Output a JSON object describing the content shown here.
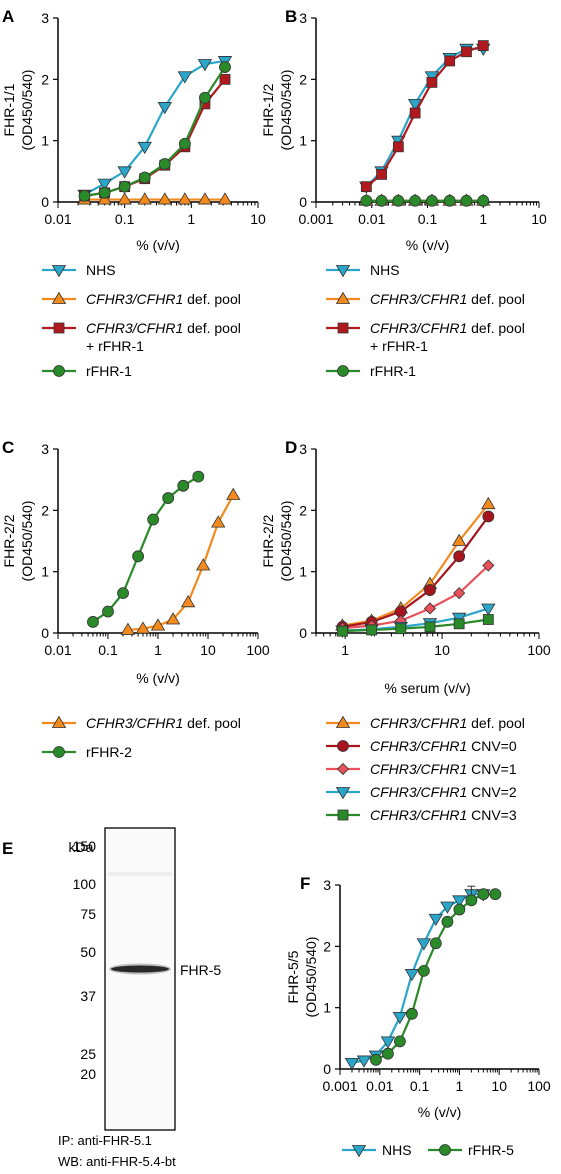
{
  "colors": {
    "nhs": "#2aa6c8",
    "def": "#f28a1e",
    "defplus": "#b01a1e",
    "rfhr": "#2a8a2a",
    "cnv0": "#a8141e",
    "cnv1": "#e8505a",
    "cnv2": "#2aa6c8",
    "cnv3": "#2a8a2a"
  },
  "chart_data": [
    {
      "id": "A",
      "type": "line",
      "letter": "A",
      "xlabel": "% (v/v)",
      "ylabel": "FHR-1/1",
      "ylabel2": "(OD450/540)",
      "xscale": "log",
      "xlim": [
        0.01,
        10
      ],
      "ylim": [
        0,
        3
      ],
      "xticks": [
        "0.01",
        "0.1",
        "1",
        "10"
      ],
      "yticks": [
        "0",
        "1",
        "2",
        "3"
      ],
      "series": [
        {
          "name": "NHS",
          "key": "nhs",
          "marker": "tri-down",
          "x": [
            0.025,
            0.05,
            0.1,
            0.2,
            0.4,
            0.8,
            1.6,
            3.2
          ],
          "y": [
            0.12,
            0.3,
            0.5,
            0.9,
            1.55,
            2.05,
            2.25,
            2.3
          ]
        },
        {
          "name": "CFHR3/CFHR1 def. pool",
          "key": "def",
          "marker": "tri-up",
          "x": [
            0.025,
            0.05,
            0.1,
            0.2,
            0.4,
            0.8,
            1.6,
            3.2
          ],
          "y": [
            0.04,
            0.04,
            0.04,
            0.04,
            0.04,
            0.04,
            0.04,
            0.04
          ]
        },
        {
          "name": "CFHR3/CFHR1 def. pool + rFHR-1",
          "key": "defplus",
          "marker": "square",
          "x": [
            0.025,
            0.05,
            0.1,
            0.2,
            0.4,
            0.8,
            1.6,
            3.2
          ],
          "y": [
            0.1,
            0.15,
            0.25,
            0.38,
            0.6,
            0.9,
            1.6,
            2.0
          ]
        },
        {
          "name": "rFHR-1",
          "key": "rfhr",
          "marker": "circle",
          "x": [
            0.025,
            0.05,
            0.1,
            0.2,
            0.4,
            0.8,
            1.6,
            3.2
          ],
          "y": [
            0.1,
            0.15,
            0.25,
            0.4,
            0.62,
            0.95,
            1.7,
            2.2
          ]
        }
      ]
    },
    {
      "id": "B",
      "type": "line",
      "letter": "B",
      "xlabel": "% (v/v)",
      "ylabel": "FHR-1/2",
      "ylabel2": "(OD450/540)",
      "xscale": "log",
      "xlim": [
        0.001,
        10
      ],
      "ylim": [
        0,
        3
      ],
      "xticks": [
        "0.001",
        "0.01",
        "0.1",
        "1",
        "10"
      ],
      "yticks": [
        "0",
        "1",
        "2",
        "3"
      ],
      "series": [
        {
          "name": "NHS",
          "key": "nhs",
          "marker": "tri-down",
          "x": [
            0.008,
            0.015,
            0.03,
            0.06,
            0.12,
            0.25,
            0.5,
            1.0
          ],
          "y": [
            0.25,
            0.5,
            1.0,
            1.6,
            2.05,
            2.35,
            2.5,
            2.5
          ]
        },
        {
          "name": "CFHR3/CFHR1 def. pool",
          "key": "def",
          "marker": "tri-up",
          "x": [
            0.008,
            0.015,
            0.03,
            0.06,
            0.12,
            0.25,
            0.5,
            1.0
          ],
          "y": [
            0.02,
            0.02,
            0.02,
            0.02,
            0.02,
            0.02,
            0.02,
            0.02
          ]
        },
        {
          "name": "CFHR3/CFHR1 def. pool + rFHR-1",
          "key": "defplus",
          "marker": "square",
          "x": [
            0.008,
            0.015,
            0.03,
            0.06,
            0.12,
            0.25,
            0.5,
            1.0
          ],
          "y": [
            0.25,
            0.45,
            0.9,
            1.45,
            1.95,
            2.3,
            2.45,
            2.55
          ]
        },
        {
          "name": "rFHR-1",
          "key": "rfhr",
          "marker": "circle",
          "x": [
            0.008,
            0.015,
            0.03,
            0.06,
            0.12,
            0.25,
            0.5,
            1.0
          ],
          "y": [
            0.02,
            0.02,
            0.02,
            0.02,
            0.02,
            0.02,
            0.02,
            0.02
          ]
        }
      ]
    },
    {
      "id": "C",
      "type": "line",
      "letter": "C",
      "xlabel": "% (v/v)",
      "ylabel": "FHR-2/2",
      "ylabel2": "(OD450/540)",
      "xscale": "log",
      "xlim": [
        0.01,
        100
      ],
      "ylim": [
        0,
        3
      ],
      "xticks": [
        "0.01",
        "0.1",
        "1",
        "10",
        "100"
      ],
      "yticks": [
        "0",
        "1",
        "2",
        "3"
      ],
      "series": [
        {
          "name": "CFHR3/CFHR1 def. pool",
          "key": "def",
          "marker": "tri-up",
          "x": [
            0.25,
            0.5,
            1,
            2,
            4,
            8,
            16,
            32
          ],
          "y": [
            0.05,
            0.07,
            0.12,
            0.22,
            0.5,
            1.1,
            1.8,
            2.25
          ]
        },
        {
          "name": "rFHR-2",
          "key": "rfhr",
          "marker": "circle",
          "x": [
            0.05,
            0.1,
            0.2,
            0.4,
            0.8,
            1.6,
            3.2,
            6.4
          ],
          "y": [
            0.18,
            0.35,
            0.65,
            1.25,
            1.85,
            2.2,
            2.4,
            2.55
          ]
        }
      ]
    },
    {
      "id": "D",
      "type": "line",
      "letter": "D",
      "xlabel": "% serum (v/v)",
      "ylabel": "FHR-2/2",
      "ylabel2": "(OD450/540)",
      "xscale": "log",
      "xlim": [
        0.5,
        100
      ],
      "ylim": [
        0,
        3
      ],
      "xticks": [
        "1",
        "10",
        "100"
      ],
      "yticks": [
        "0",
        "1",
        "2",
        "3"
      ],
      "series": [
        {
          "name": "CFHR3/CFHR1 def. pool",
          "key": "def",
          "marker": "tri-up",
          "x": [
            0.9375,
            1.875,
            3.75,
            7.5,
            15,
            30
          ],
          "y": [
            0.12,
            0.2,
            0.4,
            0.8,
            1.5,
            2.1
          ]
        },
        {
          "name": "CFHR3/CFHR1 CNV=0",
          "key": "cnv0",
          "marker": "circle",
          "x": [
            0.9375,
            1.875,
            3.75,
            7.5,
            15,
            30
          ],
          "y": [
            0.1,
            0.18,
            0.35,
            0.7,
            1.25,
            1.9
          ]
        },
        {
          "name": "CFHR3/CFHR1 CNV=1",
          "key": "cnv1",
          "marker": "diamond",
          "x": [
            0.9375,
            1.875,
            3.75,
            7.5,
            15,
            30
          ],
          "y": [
            0.08,
            0.12,
            0.2,
            0.4,
            0.65,
            1.1
          ]
        },
        {
          "name": "CFHR3/CFHR1 CNV=2",
          "key": "cnv2",
          "marker": "tri-down",
          "x": [
            0.9375,
            1.875,
            3.75,
            7.5,
            15,
            30
          ],
          "y": [
            0.04,
            0.06,
            0.1,
            0.16,
            0.25,
            0.4
          ]
        },
        {
          "name": "CFHR3/CFHR1 CNV=3",
          "key": "cnv3",
          "marker": "square",
          "x": [
            0.9375,
            1.875,
            3.75,
            7.5,
            15,
            30
          ],
          "y": [
            0.03,
            0.05,
            0.07,
            0.1,
            0.15,
            0.22
          ]
        }
      ]
    },
    {
      "id": "F",
      "type": "line",
      "letter": "F",
      "xlabel": "% (v/v)",
      "ylabel": "FHR-5/5",
      "ylabel2": "(OD450/540)",
      "xscale": "log",
      "xlim": [
        0.001,
        100
      ],
      "ylim": [
        0,
        3
      ],
      "xticks": [
        "0.001",
        "0.01",
        "0.1",
        "1",
        "10",
        "100"
      ],
      "yticks": [
        "0",
        "1",
        "2",
        "3"
      ],
      "series": [
        {
          "name": "NHS",
          "key": "nhs",
          "marker": "tri-down",
          "x": [
            0.002,
            0.004,
            0.008,
            0.016,
            0.032,
            0.064,
            0.128,
            0.256,
            0.5,
            1,
            2,
            4
          ],
          "y": [
            0.1,
            0.14,
            0.22,
            0.45,
            0.85,
            1.55,
            2.05,
            2.45,
            2.65,
            2.75,
            2.85,
            2.85
          ]
        },
        {
          "name": "rFHR-5",
          "key": "rfhr",
          "marker": "circle",
          "x": [
            0.008,
            0.016,
            0.032,
            0.064,
            0.128,
            0.256,
            0.5,
            1,
            2,
            4,
            8
          ],
          "y": [
            0.15,
            0.25,
            0.45,
            0.9,
            1.6,
            2.05,
            2.4,
            2.6,
            2.75,
            2.85,
            2.85
          ]
        }
      ]
    }
  ],
  "blot": {
    "letter": "E",
    "kda_label": "kDa",
    "markers": [
      "150",
      "100",
      "75",
      "50",
      "37",
      "25",
      "20"
    ],
    "band_label": "FHR-5",
    "ip_text": "IP: anti-FHR-5.1",
    "wb_text": "WB: anti-FHR-5.4-bt"
  },
  "legends": {
    "A": [
      "NHS",
      "CFHR3/CFHR1 def. pool",
      "CFHR3/CFHR1 def. pool + rFHR-1",
      "rFHR-1"
    ],
    "B": [
      "NHS",
      "CFHR3/CFHR1 def. pool",
      "CFHR3/CFHR1 def. pool + rFHR-1",
      "rFHR-1"
    ],
    "C": [
      "CFHR3/CFHR1 def. pool",
      "rFHR-2"
    ],
    "D": [
      "CFHR3/CFHR1 def. pool",
      "CFHR3/CFHR1 CNV=0",
      "CFHR3/CFHR1 CNV=1",
      "CFHR3/CFHR1 CNV=2",
      "CFHR3/CFHR1 CNV=3"
    ],
    "F": [
      "NHS",
      "rFHR-5"
    ]
  }
}
